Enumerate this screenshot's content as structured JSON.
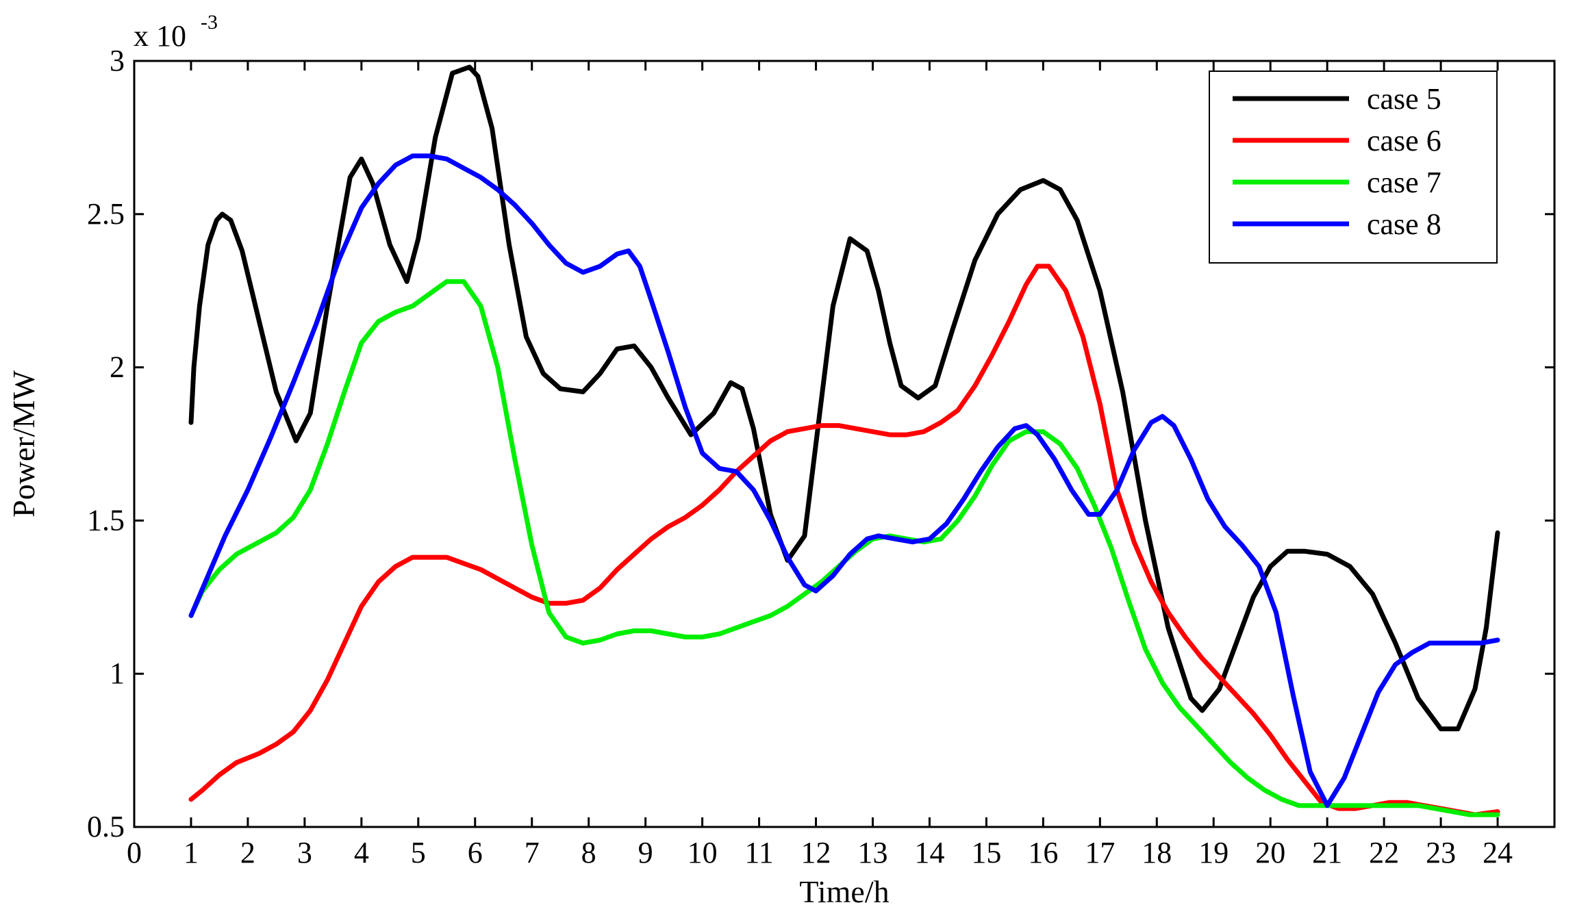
{
  "chart_data": {
    "type": "line",
    "xlabel": "Time/h",
    "ylabel": "Power/MW",
    "y_multiplier": {
      "base": "x 10",
      "exponent": "-3"
    },
    "xlim": [
      0,
      25
    ],
    "ylim": [
      0.5,
      3.0
    ],
    "x_ticks": [
      0,
      1,
      2,
      3,
      4,
      5,
      6,
      7,
      8,
      9,
      10,
      11,
      12,
      13,
      14,
      15,
      16,
      17,
      18,
      19,
      20,
      21,
      22,
      23,
      24
    ],
    "y_ticks": [
      0.5,
      1,
      1.5,
      2,
      2.5,
      3
    ],
    "y_tick_labels": [
      "0.5",
      "1",
      "1.5",
      "2",
      "2.5",
      "3"
    ],
    "grid": false,
    "legend_position": "top-right",
    "series": [
      {
        "name": "case 5",
        "color": "#000000",
        "x": [
          1.0,
          1.05,
          1.15,
          1.3,
          1.45,
          1.55,
          1.7,
          1.9,
          2.2,
          2.5,
          2.85,
          3.1,
          3.4,
          3.8,
          4.0,
          4.2,
          4.5,
          4.8,
          5.0,
          5.3,
          5.6,
          5.9,
          6.05,
          6.3,
          6.6,
          6.9,
          7.2,
          7.5,
          7.9,
          8.2,
          8.5,
          8.8,
          9.1,
          9.4,
          9.8,
          10.2,
          10.5,
          10.7,
          10.9,
          11.2,
          11.5,
          11.8,
          12.0,
          12.3,
          12.6,
          12.9,
          13.1,
          13.3,
          13.5,
          13.8,
          14.1,
          14.4,
          14.8,
          15.2,
          15.6,
          16.0,
          16.3,
          16.6,
          17.0,
          17.4,
          17.8,
          18.2,
          18.6,
          18.8,
          19.1,
          19.4,
          19.7,
          20.0,
          20.3,
          20.6,
          21.0,
          21.4,
          21.8,
          22.2,
          22.6,
          23.0,
          23.3,
          23.6,
          23.8,
          24.0
        ],
        "y": [
          1.82,
          2.0,
          2.2,
          2.4,
          2.48,
          2.5,
          2.48,
          2.38,
          2.15,
          1.92,
          1.76,
          1.85,
          2.2,
          2.62,
          2.68,
          2.6,
          2.4,
          2.28,
          2.42,
          2.75,
          2.96,
          2.98,
          2.95,
          2.78,
          2.4,
          2.1,
          1.98,
          1.93,
          1.92,
          1.98,
          2.06,
          2.07,
          2.0,
          1.9,
          1.78,
          1.85,
          1.95,
          1.93,
          1.8,
          1.52,
          1.37,
          1.45,
          1.75,
          2.2,
          2.42,
          2.38,
          2.25,
          2.08,
          1.94,
          1.9,
          1.94,
          2.12,
          2.35,
          2.5,
          2.58,
          2.61,
          2.58,
          2.48,
          2.25,
          1.92,
          1.5,
          1.15,
          0.92,
          0.88,
          0.95,
          1.1,
          1.25,
          1.35,
          1.4,
          1.4,
          1.39,
          1.35,
          1.26,
          1.1,
          0.92,
          0.82,
          0.82,
          0.95,
          1.15,
          1.46
        ]
      },
      {
        "name": "case 6",
        "color": "#ff0000",
        "x": [
          1.0,
          1.2,
          1.5,
          1.8,
          2.2,
          2.5,
          2.8,
          3.1,
          3.4,
          3.7,
          4.0,
          4.3,
          4.6,
          4.9,
          5.2,
          5.5,
          5.8,
          6.1,
          6.4,
          6.7,
          7.0,
          7.3,
          7.6,
          7.9,
          8.2,
          8.5,
          8.8,
          9.1,
          9.4,
          9.7,
          10.0,
          10.3,
          10.6,
          10.9,
          11.2,
          11.5,
          11.8,
          12.1,
          12.4,
          12.7,
          13.0,
          13.3,
          13.6,
          13.9,
          14.2,
          14.5,
          14.8,
          15.1,
          15.4,
          15.7,
          15.9,
          16.1,
          16.4,
          16.7,
          17.0,
          17.3,
          17.6,
          17.9,
          18.2,
          18.5,
          18.8,
          19.1,
          19.4,
          19.7,
          20.0,
          20.3,
          20.6,
          20.9,
          21.2,
          21.5,
          21.8,
          22.1,
          22.4,
          22.7,
          23.0,
          23.3,
          23.6,
          24.0
        ],
        "y": [
          0.59,
          0.62,
          0.67,
          0.71,
          0.74,
          0.77,
          0.81,
          0.88,
          0.98,
          1.1,
          1.22,
          1.3,
          1.35,
          1.38,
          1.38,
          1.38,
          1.36,
          1.34,
          1.31,
          1.28,
          1.25,
          1.23,
          1.23,
          1.24,
          1.28,
          1.34,
          1.39,
          1.44,
          1.48,
          1.51,
          1.55,
          1.6,
          1.66,
          1.71,
          1.76,
          1.79,
          1.8,
          1.81,
          1.81,
          1.8,
          1.79,
          1.78,
          1.78,
          1.79,
          1.82,
          1.86,
          1.94,
          2.04,
          2.15,
          2.27,
          2.33,
          2.33,
          2.25,
          2.1,
          1.88,
          1.6,
          1.43,
          1.3,
          1.2,
          1.12,
          1.05,
          0.99,
          0.93,
          0.87,
          0.8,
          0.72,
          0.65,
          0.58,
          0.56,
          0.56,
          0.57,
          0.58,
          0.58,
          0.57,
          0.56,
          0.55,
          0.54,
          0.55
        ]
      },
      {
        "name": "case 7",
        "color": "#00ee00",
        "x": [
          1.0,
          1.2,
          1.5,
          1.8,
          2.2,
          2.5,
          2.8,
          3.1,
          3.4,
          3.7,
          4.0,
          4.3,
          4.6,
          4.9,
          5.2,
          5.5,
          5.8,
          6.1,
          6.4,
          6.7,
          7.0,
          7.3,
          7.6,
          7.9,
          8.2,
          8.5,
          8.8,
          9.1,
          9.4,
          9.7,
          10.0,
          10.3,
          10.6,
          10.9,
          11.2,
          11.5,
          11.8,
          12.1,
          12.4,
          12.7,
          13.0,
          13.3,
          13.6,
          13.9,
          14.2,
          14.5,
          14.8,
          15.1,
          15.4,
          15.7,
          16.0,
          16.3,
          16.6,
          16.9,
          17.2,
          17.5,
          17.8,
          18.1,
          18.4,
          18.7,
          19.0,
          19.3,
          19.6,
          19.9,
          20.2,
          20.5,
          20.8,
          21.1,
          21.4,
          21.7,
          22.0,
          22.3,
          22.6,
          22.9,
          23.2,
          23.5,
          24.0
        ],
        "y": [
          1.19,
          1.27,
          1.34,
          1.39,
          1.43,
          1.46,
          1.51,
          1.6,
          1.75,
          1.92,
          2.08,
          2.15,
          2.18,
          2.2,
          2.24,
          2.28,
          2.28,
          2.2,
          2.0,
          1.7,
          1.42,
          1.2,
          1.12,
          1.1,
          1.11,
          1.13,
          1.14,
          1.14,
          1.13,
          1.12,
          1.12,
          1.13,
          1.15,
          1.17,
          1.19,
          1.22,
          1.26,
          1.3,
          1.35,
          1.4,
          1.44,
          1.45,
          1.44,
          1.43,
          1.44,
          1.5,
          1.58,
          1.68,
          1.76,
          1.79,
          1.79,
          1.75,
          1.67,
          1.55,
          1.41,
          1.24,
          1.08,
          0.97,
          0.89,
          0.83,
          0.77,
          0.71,
          0.66,
          0.62,
          0.59,
          0.57,
          0.57,
          0.57,
          0.57,
          0.57,
          0.57,
          0.57,
          0.57,
          0.56,
          0.55,
          0.54,
          0.54
        ]
      },
      {
        "name": "case 8",
        "color": "#0000ff",
        "x": [
          1.0,
          1.3,
          1.6,
          2.0,
          2.4,
          2.8,
          3.2,
          3.6,
          4.0,
          4.3,
          4.6,
          4.9,
          5.2,
          5.5,
          5.8,
          6.1,
          6.4,
          6.7,
          7.0,
          7.3,
          7.6,
          7.9,
          8.2,
          8.5,
          8.7,
          8.9,
          9.1,
          9.4,
          9.7,
          10.0,
          10.3,
          10.6,
          10.9,
          11.2,
          11.5,
          11.8,
          12.0,
          12.3,
          12.6,
          12.9,
          13.1,
          13.4,
          13.7,
          14.0,
          14.3,
          14.6,
          14.9,
          15.2,
          15.5,
          15.7,
          15.9,
          16.2,
          16.5,
          16.8,
          17.0,
          17.3,
          17.6,
          17.9,
          18.1,
          18.3,
          18.6,
          18.9,
          19.2,
          19.5,
          19.8,
          20.1,
          20.4,
          20.7,
          21.0,
          21.3,
          21.6,
          21.9,
          22.2,
          22.5,
          22.8,
          23.1,
          23.4,
          23.7,
          24.0
        ],
        "y": [
          1.19,
          1.32,
          1.45,
          1.6,
          1.77,
          1.95,
          2.14,
          2.35,
          2.52,
          2.6,
          2.66,
          2.69,
          2.69,
          2.68,
          2.65,
          2.62,
          2.58,
          2.53,
          2.47,
          2.4,
          2.34,
          2.31,
          2.33,
          2.37,
          2.38,
          2.33,
          2.22,
          2.05,
          1.87,
          1.72,
          1.67,
          1.66,
          1.6,
          1.5,
          1.38,
          1.29,
          1.27,
          1.32,
          1.39,
          1.44,
          1.45,
          1.44,
          1.43,
          1.44,
          1.49,
          1.57,
          1.66,
          1.74,
          1.8,
          1.81,
          1.78,
          1.7,
          1.6,
          1.52,
          1.52,
          1.6,
          1.73,
          1.82,
          1.84,
          1.81,
          1.7,
          1.57,
          1.48,
          1.42,
          1.35,
          1.2,
          0.93,
          0.68,
          0.57,
          0.66,
          0.8,
          0.94,
          1.03,
          1.07,
          1.1,
          1.1,
          1.1,
          1.1,
          1.11
        ]
      }
    ]
  }
}
